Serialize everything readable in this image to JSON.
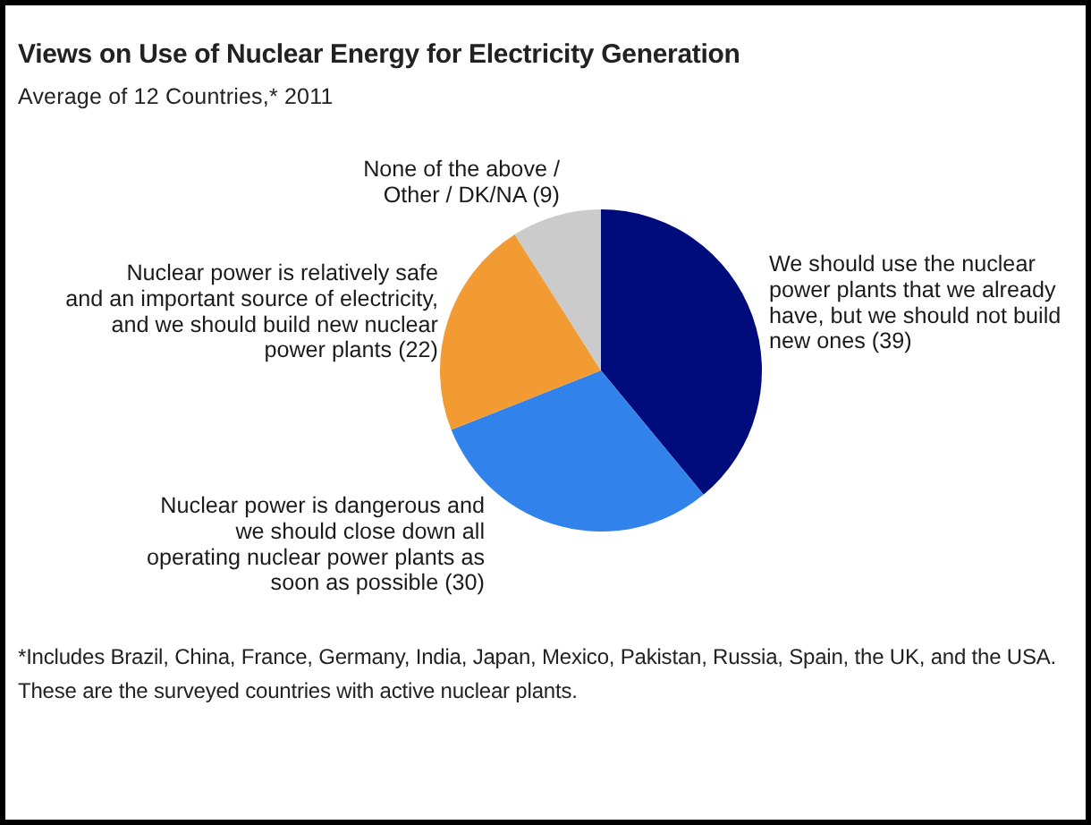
{
  "chart_data": {
    "type": "pie",
    "title": "Views on Use of Nuclear Energy for Electricity Generation",
    "subtitle": "Average of 12 Countries,* 2011",
    "categories": [
      "We should use the nuclear\npower plants that we already\nhave, but we should not build\nnew ones (39)",
      "Nuclear power is dangerous and\nwe should close down all\noperating nuclear power plants as\nsoon as possible (30)",
      "Nuclear power is relatively safe\nand an important source of electricity,\nand we should build new nuclear\npower plants (22)",
      "None of the above /\nOther / DK/NA (9)"
    ],
    "values": [
      39,
      30,
      22,
      9
    ],
    "colors": [
      "#000c7b",
      "#3182ea",
      "#f19b32",
      "#cbcbcb"
    ],
    "annotations": [
      "*Includes Brazil, China, France, Germany, India, Japan, Mexico, Pakistan, Russia, Spain, the UK, and the USA.",
      "These are the surveyed countries with active nuclear plants."
    ]
  }
}
